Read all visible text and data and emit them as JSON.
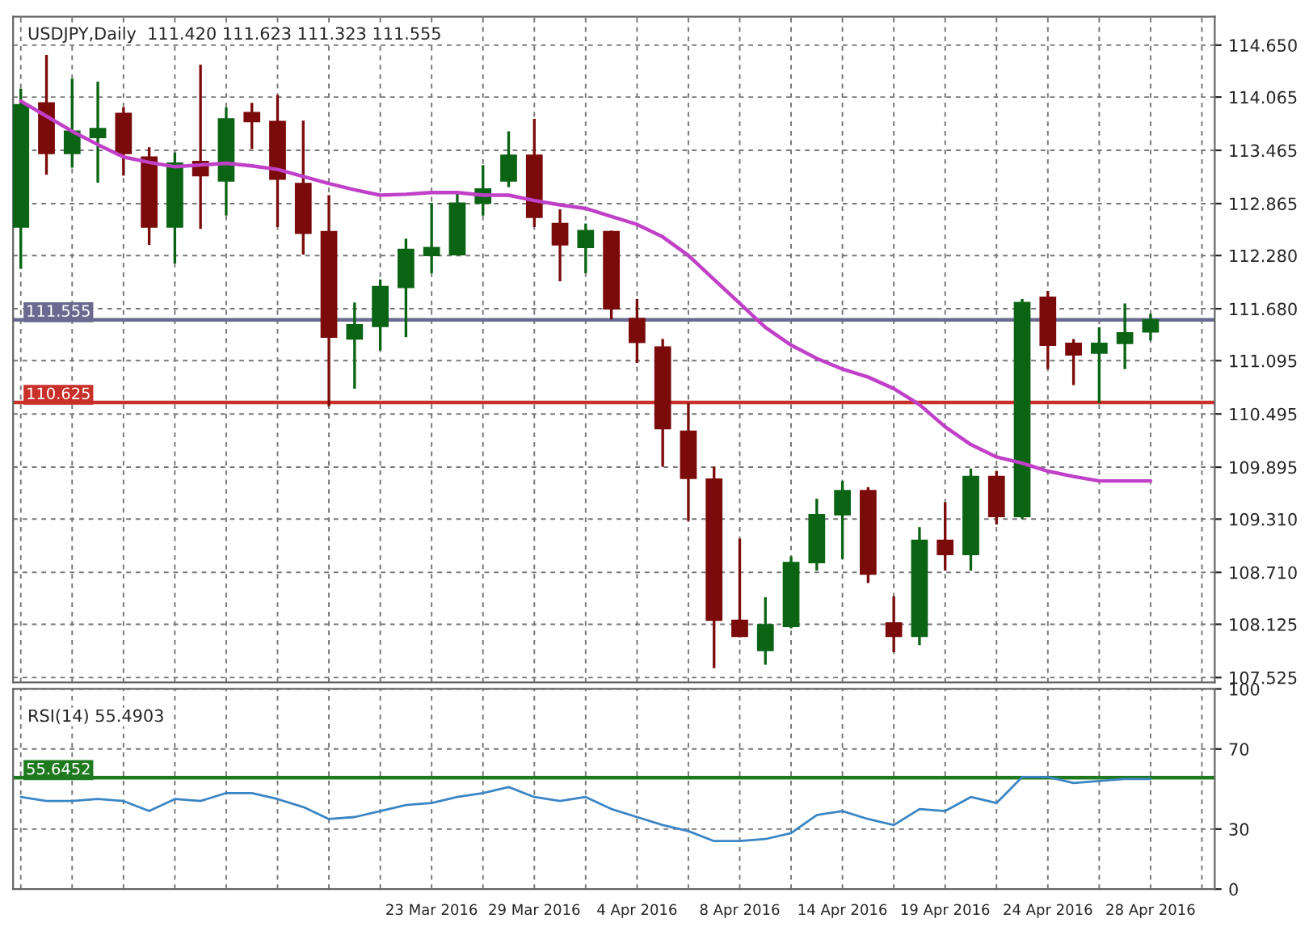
{
  "chart_data": [
    {
      "type": "candlestick",
      "title": "USDJPY,Daily  111.420 111.623 111.323 111.555",
      "categories": [
        null,
        null,
        null,
        null,
        null,
        null,
        null,
        null,
        null,
        null,
        null,
        null,
        null,
        null,
        null,
        null,
        null,
        null,
        null,
        null,
        null,
        null,
        null,
        null,
        null,
        null,
        null,
        null,
        null,
        null,
        null,
        null,
        null,
        null,
        null,
        null,
        null,
        null,
        null,
        null,
        null,
        null,
        null,
        null,
        null
      ],
      "ohlc": [
        [
          112.6,
          114.16,
          112.13,
          113.98
        ],
        [
          114.0,
          114.54,
          113.19,
          113.43
        ],
        [
          113.43,
          114.27,
          113.27,
          113.68
        ],
        [
          113.61,
          114.24,
          113.1,
          113.71
        ],
        [
          113.88,
          113.95,
          113.18,
          113.43
        ],
        [
          113.39,
          113.5,
          112.4,
          112.6
        ],
        [
          112.6,
          113.44,
          112.19,
          113.32
        ],
        [
          113.34,
          114.43,
          112.58,
          113.18
        ],
        [
          113.12,
          113.95,
          112.73,
          113.82
        ],
        [
          113.89,
          114.0,
          113.48,
          113.79
        ],
        [
          113.79,
          114.09,
          112.6,
          113.14
        ],
        [
          113.09,
          113.8,
          112.29,
          112.53
        ],
        [
          112.55,
          112.96,
          110.58,
          111.36
        ],
        [
          111.34,
          111.75,
          110.78,
          111.5
        ],
        [
          111.48,
          112.01,
          111.21,
          111.93
        ],
        [
          111.92,
          112.47,
          111.36,
          112.35
        ],
        [
          112.28,
          112.87,
          112.08,
          112.37
        ],
        [
          112.29,
          113.0,
          112.28,
          112.87
        ],
        [
          112.87,
          113.3,
          112.73,
          113.03
        ],
        [
          113.12,
          113.68,
          113.05,
          113.41
        ],
        [
          113.41,
          113.82,
          112.6,
          112.71
        ],
        [
          112.64,
          112.8,
          111.99,
          112.4
        ],
        [
          112.37,
          112.64,
          112.08,
          112.56
        ],
        [
          112.55,
          112.56,
          111.56,
          111.68
        ],
        [
          111.57,
          111.79,
          111.07,
          111.3
        ],
        [
          111.25,
          111.34,
          109.9,
          110.33
        ],
        [
          110.3,
          110.62,
          109.29,
          109.77
        ],
        [
          109.76,
          109.9,
          107.63,
          108.17
        ],
        [
          108.17,
          109.09,
          107.98,
          107.99
        ],
        [
          107.83,
          108.43,
          107.67,
          108.12
        ],
        [
          108.1,
          108.89,
          108.08,
          108.82
        ],
        [
          108.82,
          109.54,
          108.73,
          109.36
        ],
        [
          109.36,
          109.74,
          108.86,
          109.63
        ],
        [
          109.63,
          109.67,
          108.59,
          108.69
        ],
        [
          108.14,
          108.44,
          107.81,
          107.99
        ],
        [
          107.99,
          109.22,
          107.89,
          109.07
        ],
        [
          109.07,
          109.5,
          108.73,
          108.91
        ],
        [
          108.91,
          109.88,
          108.73,
          109.79
        ],
        [
          109.79,
          109.85,
          109.25,
          109.34
        ],
        [
          109.34,
          111.79,
          109.31,
          111.75
        ],
        [
          111.81,
          111.88,
          111.0,
          111.27
        ],
        [
          111.29,
          111.34,
          110.82,
          111.16
        ],
        [
          111.18,
          111.47,
          110.62,
          111.29
        ],
        [
          111.29,
          111.74,
          111.0,
          111.41
        ],
        [
          111.42,
          111.623,
          111.323,
          111.555
        ]
      ],
      "colors": [
        "#0a6414",
        "#7b0a0a",
        "#0a6414",
        "#0a6414",
        "#7b0a0a",
        "#7b0a0a",
        "#0a6414",
        "#7b0a0a",
        "#0a6414",
        "#7b0a0a",
        "#7b0a0a",
        "#7b0a0a",
        "#7b0a0a",
        "#0a6414",
        "#0a6414",
        "#0a6414",
        "#0a6414",
        "#0a6414",
        "#0a6414",
        "#0a6414",
        "#7b0a0a",
        "#7b0a0a",
        "#0a6414",
        "#7b0a0a",
        "#7b0a0a",
        "#7b0a0a",
        "#7b0a0a",
        "#7b0a0a",
        "#7b0a0a",
        "#0a6414",
        "#0a6414",
        "#0a6414",
        "#0a6414",
        "#7b0a0a",
        "#7b0a0a",
        "#0a6414",
        "#7b0a0a",
        "#0a6414",
        "#7b0a0a",
        "#0a6414",
        "#7b0a0a",
        "#7b0a0a",
        "#0a6414",
        "#0a6414",
        "#0a6414"
      ],
      "series": [
        {
          "type": "line",
          "color": "#c040c8",
          "values": [
            114.02,
            113.85,
            113.68,
            113.53,
            113.39,
            113.33,
            113.28,
            113.3,
            113.32,
            113.29,
            113.25,
            113.17,
            113.09,
            113.02,
            112.96,
            112.97,
            112.99,
            112.99,
            112.96,
            112.96,
            112.9,
            112.85,
            112.81,
            112.72,
            112.63,
            112.49,
            112.28,
            112.01,
            111.74,
            111.47,
            111.27,
            111.12,
            111.0,
            110.91,
            110.78,
            110.6,
            110.35,
            110.15,
            110.01,
            109.94,
            109.85,
            109.79,
            109.74,
            109.74,
            109.74
          ]
        }
      ],
      "ylim": [
        107.47,
        114.97
      ],
      "yticks": [
        {
          "value": 114.65,
          "label": "114.650"
        },
        {
          "value": 114.065,
          "label": "114.065"
        },
        {
          "value": 113.465,
          "label": "113.465"
        },
        {
          "value": 112.865,
          "label": "112.865"
        },
        {
          "value": 112.28,
          "label": "112.280"
        },
        {
          "value": 111.68,
          "label": "111.680"
        },
        {
          "value": 111.095,
          "label": "111.095"
        },
        {
          "value": 110.495,
          "label": "110.495"
        },
        {
          "value": 109.895,
          "label": "109.895"
        },
        {
          "value": 109.31,
          "label": "109.310"
        },
        {
          "value": 108.71,
          "label": "108.710"
        },
        {
          "value": 108.125,
          "label": "108.125"
        },
        {
          "value": 107.525,
          "label": "107.525"
        }
      ],
      "ref_lines": [
        {
          "axis": "y",
          "value": 110.625,
          "label": "110.625",
          "color": "#c8302a"
        },
        {
          "axis": "y",
          "value": 111.555,
          "label": "111.555",
          "color": "#6a6a90"
        }
      ],
      "grid": true,
      "legend": false,
      "tick_labels": "y"
    },
    {
      "type": "line",
      "title": "RSI(14) 55.4903",
      "categories": [
        null,
        null,
        null,
        null,
        null,
        null,
        null,
        null,
        null,
        null,
        null,
        null,
        null,
        null,
        null,
        null,
        "23 Mar 2016",
        null,
        null,
        null,
        "29 Mar 2016",
        null,
        null,
        null,
        "4 Apr 2016",
        null,
        null,
        null,
        "8 Apr 2016",
        null,
        null,
        null,
        "14 Apr 2016",
        null,
        null,
        null,
        "19 Apr 2016",
        null,
        null,
        null,
        "24 Apr 2016",
        null,
        null,
        null,
        "28 Apr 2016"
      ],
      "series": [
        {
          "color": "#3a86c4",
          "values": [
            46,
            44,
            44,
            45,
            44,
            39,
            45,
            44,
            48,
            48,
            45,
            41,
            35,
            36,
            39,
            42,
            43,
            46,
            48,
            51,
            46,
            44,
            46,
            40,
            36,
            32,
            29,
            24,
            24,
            25,
            28,
            37,
            39,
            35,
            32,
            40,
            39,
            46,
            43,
            56,
            56,
            53,
            54,
            55,
            55
          ]
        }
      ],
      "ylim": [
        0,
        100
      ],
      "yticks": [
        0,
        30,
        70,
        100
      ],
      "ref_lines": [
        {
          "axis": "y",
          "value": 55.6452,
          "label": "55.6452",
          "color": "#1f7a1f"
        }
      ],
      "grid": true,
      "legend": false
    }
  ]
}
